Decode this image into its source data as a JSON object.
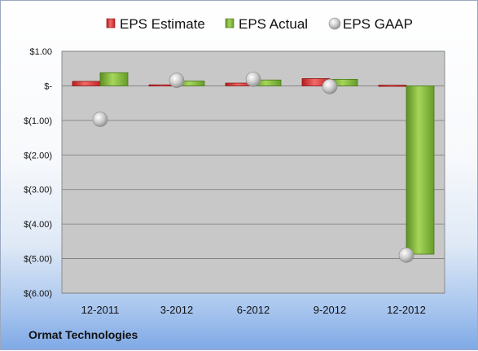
{
  "company_name": "Ormat Technologies",
  "colors": {
    "estimate": "#e03030",
    "actual": "#86bf3c",
    "gaap": "#c7c7c7",
    "plot_bg": "#c8c8c8"
  },
  "chart_data": {
    "type": "bar",
    "categories": [
      "12-2011",
      "3-2012",
      "6-2012",
      "9-2012",
      "12-2012"
    ],
    "series": [
      {
        "name": "EPS Estimate",
        "kind": "bar",
        "values": [
          0.13,
          0.03,
          0.08,
          0.21,
          0.02
        ]
      },
      {
        "name": "EPS Actual",
        "kind": "bar",
        "values": [
          0.38,
          0.14,
          0.17,
          0.19,
          -4.87
        ]
      },
      {
        "name": "EPS GAAP",
        "kind": "marker",
        "values": [
          -0.97,
          0.16,
          0.19,
          -0.02,
          -4.9
        ]
      }
    ],
    "ylim": [
      -6,
      1
    ],
    "yticks": [
      1,
      0,
      -1,
      -2,
      -3,
      -4,
      -5,
      -6
    ],
    "ytick_labels": [
      "$1.00",
      "$-",
      "$(1.00)",
      "$(2.00)",
      "$(3.00)",
      "$(4.00)",
      "$(5.00)",
      "$(6.00)"
    ],
    "grid": true,
    "legend_position": "top"
  }
}
